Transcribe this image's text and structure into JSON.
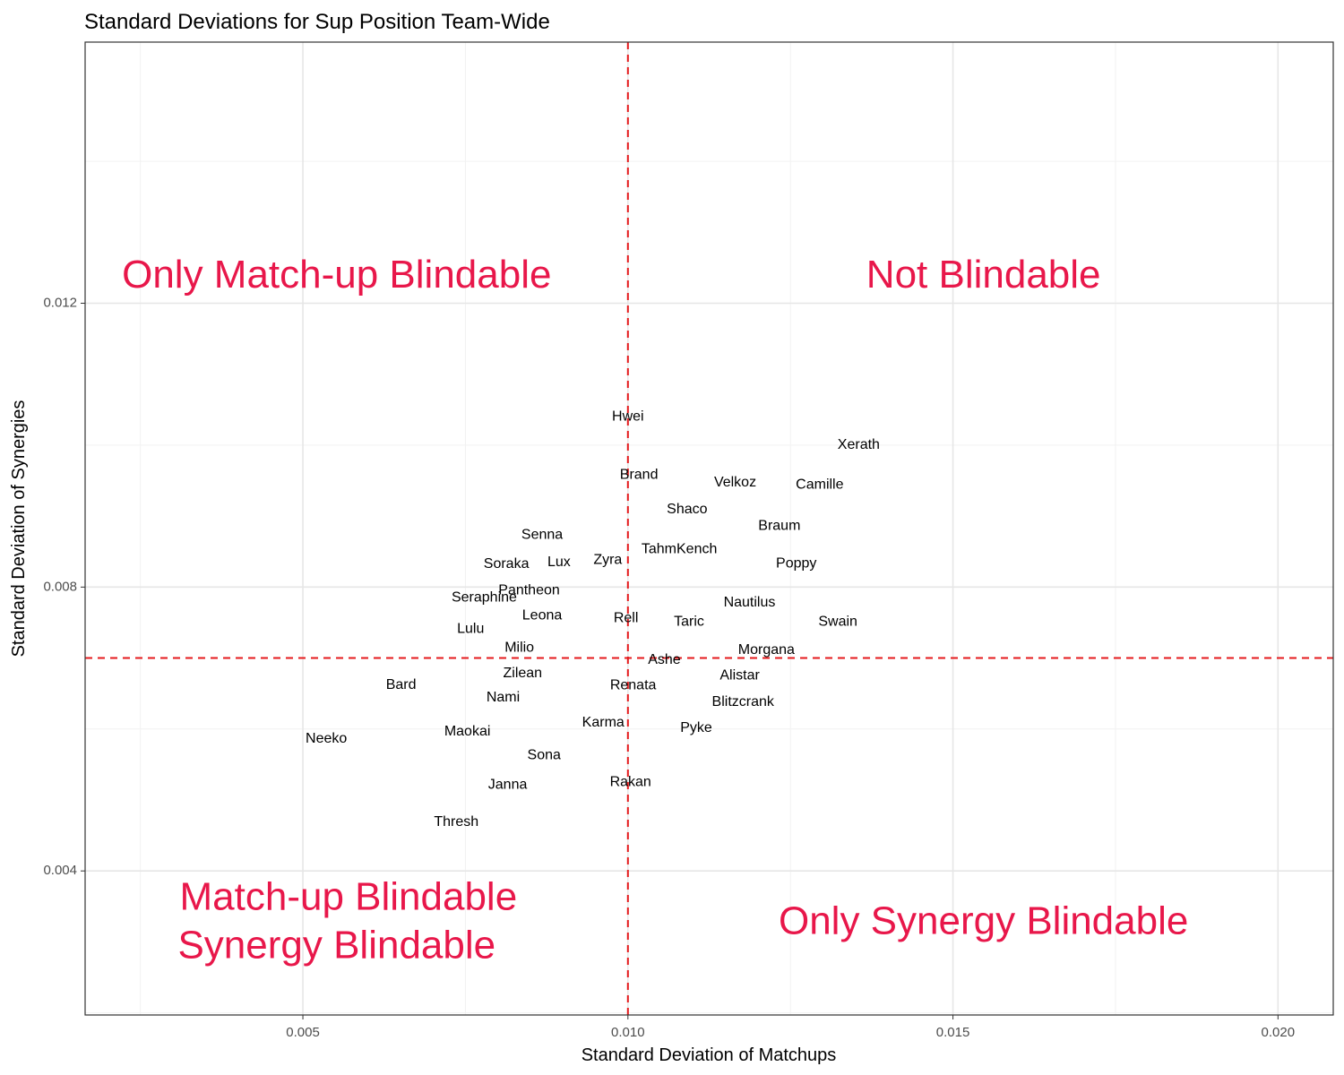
{
  "chart_data": {
    "type": "scatter",
    "title": "Standard Deviations for Sup Position Team-Wide",
    "xlabel": "Standard Deviation of Matchups",
    "ylabel": "Standard Deviation of Synergies",
    "xlim": [
      0.00165,
      0.02085
    ],
    "ylim": [
      0.00197,
      0.01568
    ],
    "x_major_ticks": [
      0.005,
      0.01,
      0.015,
      0.02
    ],
    "x_tick_labels": [
      "0.005",
      "0.010",
      "0.015",
      "0.020"
    ],
    "x_minor_ticks": [
      0.0025,
      0.0075,
      0.0125,
      0.0175
    ],
    "y_major_ticks": [
      0.004,
      0.008,
      0.012
    ],
    "y_tick_labels": [
      "0.004",
      "0.008",
      "0.012"
    ],
    "y_minor_ticks": [
      0.002,
      0.006,
      0.01,
      0.014
    ],
    "grid": true,
    "reference_lines": {
      "x": 0.01,
      "y": 0.007,
      "style": "dashed",
      "color": "#e41a1c"
    },
    "points": [
      {
        "label": "Hwei",
        "x": 0.01,
        "y": 0.0104
      },
      {
        "label": "Xerath",
        "x": 0.01355,
        "y": 0.01
      },
      {
        "label": "Brand",
        "x": 0.01017,
        "y": 0.00958
      },
      {
        "label": "Velkoz",
        "x": 0.01165,
        "y": 0.00947
      },
      {
        "label": "Camille",
        "x": 0.01295,
        "y": 0.00944
      },
      {
        "label": "Shaco",
        "x": 0.01091,
        "y": 0.00909
      },
      {
        "label": "Braum",
        "x": 0.01233,
        "y": 0.00886
      },
      {
        "label": "Senna",
        "x": 0.00868,
        "y": 0.00873
      },
      {
        "label": "TahmKench",
        "x": 0.01079,
        "y": 0.00853
      },
      {
        "label": "Zyra",
        "x": 0.00969,
        "y": 0.00838
      },
      {
        "label": "Lux",
        "x": 0.00894,
        "y": 0.00835
      },
      {
        "label": "Soraka",
        "x": 0.00813,
        "y": 0.00832
      },
      {
        "label": "Poppy",
        "x": 0.01259,
        "y": 0.00833
      },
      {
        "label": "Pantheon",
        "x": 0.00848,
        "y": 0.00795
      },
      {
        "label": "Seraphine",
        "x": 0.00779,
        "y": 0.00785
      },
      {
        "label": "Nautilus",
        "x": 0.01187,
        "y": 0.00778
      },
      {
        "label": "Leona",
        "x": 0.00868,
        "y": 0.0076
      },
      {
        "label": "Rell",
        "x": 0.00997,
        "y": 0.00756
      },
      {
        "label": "Taric",
        "x": 0.01094,
        "y": 0.00751
      },
      {
        "label": "Swain",
        "x": 0.01323,
        "y": 0.00751
      },
      {
        "label": "Lulu",
        "x": 0.00758,
        "y": 0.00741
      },
      {
        "label": "Milio",
        "x": 0.00833,
        "y": 0.00714
      },
      {
        "label": "Morgana",
        "x": 0.01213,
        "y": 0.00711
      },
      {
        "label": "Ashe",
        "x": 0.01056,
        "y": 0.00697
      },
      {
        "label": "Zilean",
        "x": 0.00838,
        "y": 0.00678
      },
      {
        "label": "Alistar",
        "x": 0.01172,
        "y": 0.00675
      },
      {
        "label": "Bard",
        "x": 0.00651,
        "y": 0.00662
      },
      {
        "label": "Renata",
        "x": 0.01008,
        "y": 0.00661
      },
      {
        "label": "Nami",
        "x": 0.00808,
        "y": 0.00644
      },
      {
        "label": "Blitzcrank",
        "x": 0.01177,
        "y": 0.00638
      },
      {
        "label": "Karma",
        "x": 0.00962,
        "y": 0.00609
      },
      {
        "label": "Pyke",
        "x": 0.01105,
        "y": 0.00601
      },
      {
        "label": "Maokai",
        "x": 0.00753,
        "y": 0.00596
      },
      {
        "label": "Neeko",
        "x": 0.00536,
        "y": 0.00586
      },
      {
        "label": "Sona",
        "x": 0.00871,
        "y": 0.00563
      },
      {
        "label": "Rakan",
        "x": 0.01004,
        "y": 0.00525
      },
      {
        "label": "Janna",
        "x": 0.00815,
        "y": 0.00521
      },
      {
        "label": "Thresh",
        "x": 0.00736,
        "y": 0.00469
      }
    ],
    "annotations": [
      {
        "text": "Only Match-up Blindable",
        "x": 0.00552,
        "y": 0.01237
      },
      {
        "text": "Not Blindable",
        "x": 0.01547,
        "y": 0.01237
      },
      {
        "text": "Match-up Blindable",
        "x": 0.0057,
        "y": 0.0036
      },
      {
        "text": "Synergy Blindable",
        "x": 0.00552,
        "y": 0.00292
      },
      {
        "text": "Only Synergy Blindable",
        "x": 0.01547,
        "y": 0.00326
      }
    ],
    "annotation_color": "#e8174a",
    "point_label_color": "#000000"
  }
}
